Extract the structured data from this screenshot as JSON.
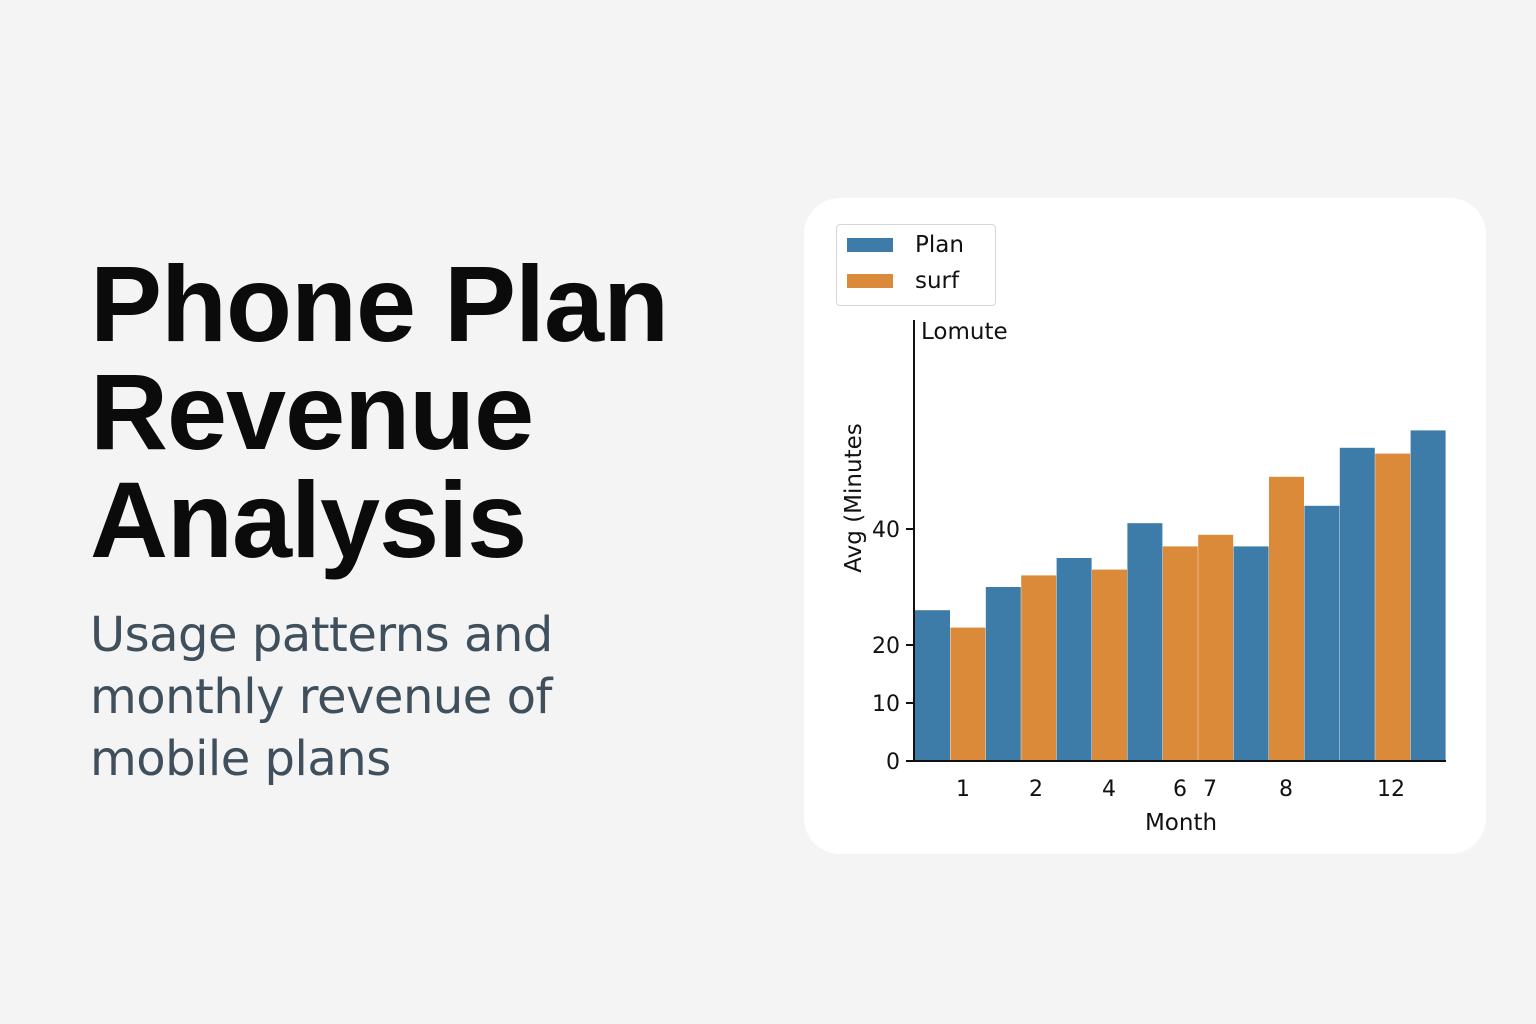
{
  "heading": {
    "title_lines": [
      "Phone Plan",
      "Revenue",
      "Analysis"
    ],
    "subtitle_lines": [
      "Usage patterns and",
      "monthly revenue of",
      "mobile plans"
    ]
  },
  "colors": {
    "background": "#f4f4f4",
    "card": "#ffffff",
    "plan": "#3d7ca8",
    "surf": "#db8a3a"
  },
  "chart_data": {
    "type": "bar",
    "title": "",
    "xlabel": "Month",
    "ylabel": "Avg (Minutes",
    "axis_top_label": "Lomute",
    "legend_placement": "top-left",
    "grid": false,
    "ylim": [
      0,
      60
    ],
    "yticks": [
      0,
      10,
      20,
      40
    ],
    "ytick_labels": [
      "0",
      "10",
      "20",
      "40"
    ],
    "xtick_labels": [
      "1",
      "2",
      "4",
      "6",
      "7",
      "8",
      "12"
    ],
    "legend": [
      {
        "name": "Plan",
        "color": "#3d7ca8"
      },
      {
        "name": "surf",
        "color": "#db8a3a"
      }
    ],
    "bars": [
      {
        "series": "Plan",
        "value": 26
      },
      {
        "series": "surf",
        "value": 23
      },
      {
        "series": "Plan",
        "value": 30
      },
      {
        "series": "surf",
        "value": 32
      },
      {
        "series": "Plan",
        "value": 35
      },
      {
        "series": "surf",
        "value": 33
      },
      {
        "series": "Plan",
        "value": 41
      },
      {
        "series": "surf",
        "value": 37
      },
      {
        "series": "surf",
        "value": 39
      },
      {
        "series": "Plan",
        "value": 37
      },
      {
        "series": "surf",
        "value": 49
      },
      {
        "series": "Plan",
        "value": 44
      },
      {
        "series": "Plan",
        "value": 54
      },
      {
        "series": "surf",
        "value": 53
      },
      {
        "series": "Plan",
        "value": 57
      }
    ]
  }
}
